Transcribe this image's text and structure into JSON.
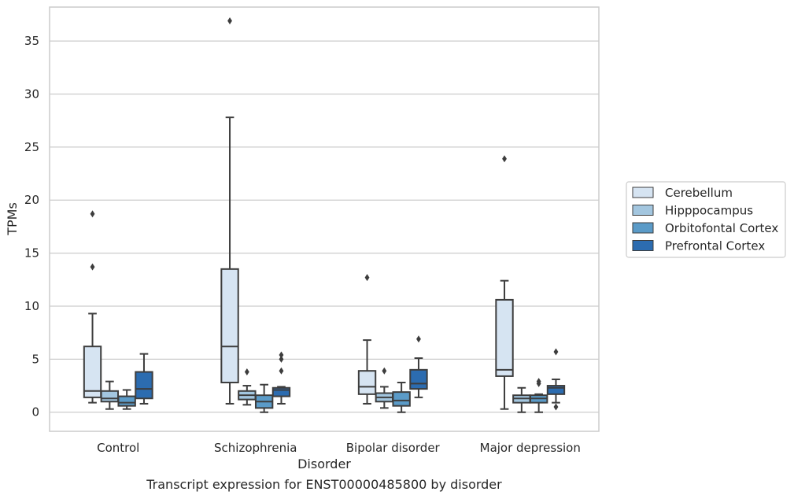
{
  "caption": "Transcript expression for ENST00000485800 by disorder",
  "chart_data": {
    "type": "boxplot",
    "xlabel": "Disorder",
    "ylabel": "TPMs",
    "categories": [
      "Control",
      "Schizophrenia",
      "Bipolar disorder",
      "Major depression"
    ],
    "ylim": [
      -1.8,
      38.2
    ],
    "yticks": [
      0,
      5,
      10,
      15,
      20,
      25,
      30,
      35
    ],
    "grid": "horizontal",
    "legend_position": "right-center",
    "series": [
      {
        "name": "Cerebellum",
        "color": "#d6e4f2",
        "boxes": [
          {
            "whislo": 0.9,
            "q1": 1.4,
            "med": 2.0,
            "q3": 6.2,
            "whishi": 9.3,
            "fliers": [
              13.7,
              18.7
            ]
          },
          {
            "whislo": 0.8,
            "q1": 2.8,
            "med": 6.2,
            "q3": 13.5,
            "whishi": 27.8,
            "fliers": [
              36.9
            ]
          },
          {
            "whislo": 0.8,
            "q1": 1.7,
            "med": 2.4,
            "q3": 3.9,
            "whishi": 6.8,
            "fliers": [
              12.7
            ]
          },
          {
            "whislo": 0.3,
            "q1": 3.4,
            "med": 4.0,
            "q3": 10.6,
            "whishi": 12.4,
            "fliers": [
              23.9
            ]
          }
        ]
      },
      {
        "name": "Hipppocampus",
        "color": "#a3c6df",
        "boxes": [
          {
            "whislo": 0.3,
            "q1": 1.0,
            "med": 1.3,
            "q3": 2.0,
            "whishi": 2.9,
            "fliers": []
          },
          {
            "whislo": 0.7,
            "q1": 1.2,
            "med": 1.6,
            "q3": 2.0,
            "whishi": 2.5,
            "fliers": [
              3.8
            ]
          },
          {
            "whislo": 0.4,
            "q1": 1.0,
            "med": 1.4,
            "q3": 1.8,
            "whishi": 2.4,
            "fliers": [
              3.9
            ]
          },
          {
            "whislo": 0.0,
            "q1": 0.9,
            "med": 1.3,
            "q3": 1.6,
            "whishi": 2.3,
            "fliers": []
          }
        ]
      },
      {
        "name": "Orbitofontal Cortex",
        "color": "#5b9bc8",
        "boxes": [
          {
            "whislo": 0.3,
            "q1": 0.6,
            "med": 0.9,
            "q3": 1.5,
            "whishi": 2.1,
            "fliers": []
          },
          {
            "whislo": 0.0,
            "q1": 0.4,
            "med": 1.0,
            "q3": 1.6,
            "whishi": 2.6,
            "fliers": []
          },
          {
            "whislo": 0.0,
            "q1": 0.6,
            "med": 1.1,
            "q3": 1.9,
            "whishi": 2.8,
            "fliers": []
          },
          {
            "whislo": 0.0,
            "q1": 0.9,
            "med": 1.3,
            "q3": 1.6,
            "whishi": 1.7,
            "fliers": [
              2.7,
              2.9
            ]
          }
        ]
      },
      {
        "name": "Prefrontal Cortex",
        "color": "#2c6cb0",
        "boxes": [
          {
            "whislo": 0.8,
            "q1": 1.3,
            "med": 2.2,
            "q3": 3.8,
            "whishi": 5.5,
            "fliers": []
          },
          {
            "whislo": 0.8,
            "q1": 1.5,
            "med": 2.1,
            "q3": 2.3,
            "whishi": 2.4,
            "fliers": [
              3.9,
              5.0,
              5.4
            ]
          },
          {
            "whislo": 1.4,
            "q1": 2.2,
            "med": 2.7,
            "q3": 4.0,
            "whishi": 5.1,
            "fliers": [
              6.9
            ]
          },
          {
            "whislo": 0.9,
            "q1": 1.7,
            "med": 2.3,
            "q3": 2.5,
            "whishi": 3.1,
            "fliers": [
              0.5,
              5.7
            ]
          }
        ]
      }
    ]
  }
}
